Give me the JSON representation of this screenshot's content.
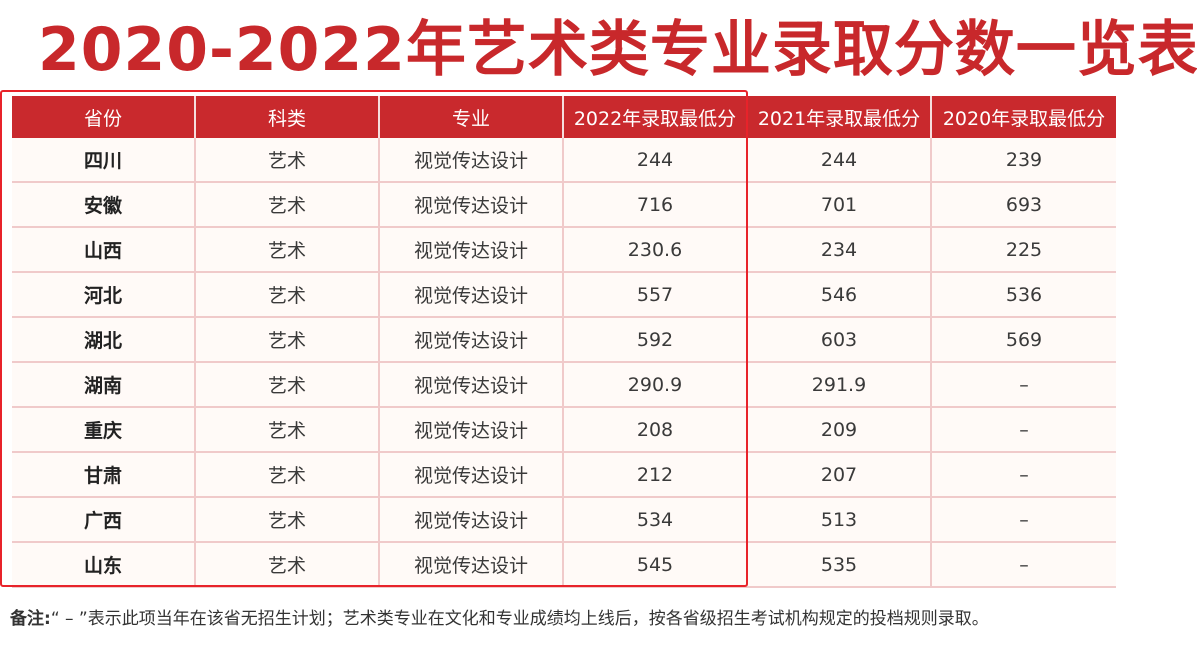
{
  "title": "2020-2022年艺术类专业录取分数一览表",
  "table": {
    "headers": [
      "省份",
      "科类",
      "专业",
      "2022年录取最低分",
      "2021年录取最低分",
      "2020年录取最低分"
    ],
    "rows": [
      [
        "四川",
        "艺术",
        "视觉传达设计",
        "244",
        "244",
        "239"
      ],
      [
        "安徽",
        "艺术",
        "视觉传达设计",
        "716",
        "701",
        "693"
      ],
      [
        "山西",
        "艺术",
        "视觉传达设计",
        "230.6",
        "234",
        "225"
      ],
      [
        "河北",
        "艺术",
        "视觉传达设计",
        "557",
        "546",
        "536"
      ],
      [
        "湖北",
        "艺术",
        "视觉传达设计",
        "592",
        "603",
        "569"
      ],
      [
        "湖南",
        "艺术",
        "视觉传达设计",
        "290.9",
        "291.9",
        "–"
      ],
      [
        "重庆",
        "艺术",
        "视觉传达设计",
        "208",
        "209",
        "–"
      ],
      [
        "甘肃",
        "艺术",
        "视觉传达设计",
        "212",
        "207",
        "–"
      ],
      [
        "广西",
        "艺术",
        "视觉传达设计",
        "534",
        "513",
        "–"
      ],
      [
        "山东",
        "艺术",
        "视觉传达设计",
        "545",
        "535",
        "–"
      ]
    ]
  },
  "note": {
    "label": "备注:",
    "text": "“ – ”表示此项当年在该省无招生计划；艺术类专业在文化和专业成绩均上线后，按各省级招生考试机构规定的投档规则录取。"
  },
  "colors": {
    "header_red": "#c9292d",
    "title_red": "#c8282b",
    "highlight_border": "#e8232a"
  }
}
